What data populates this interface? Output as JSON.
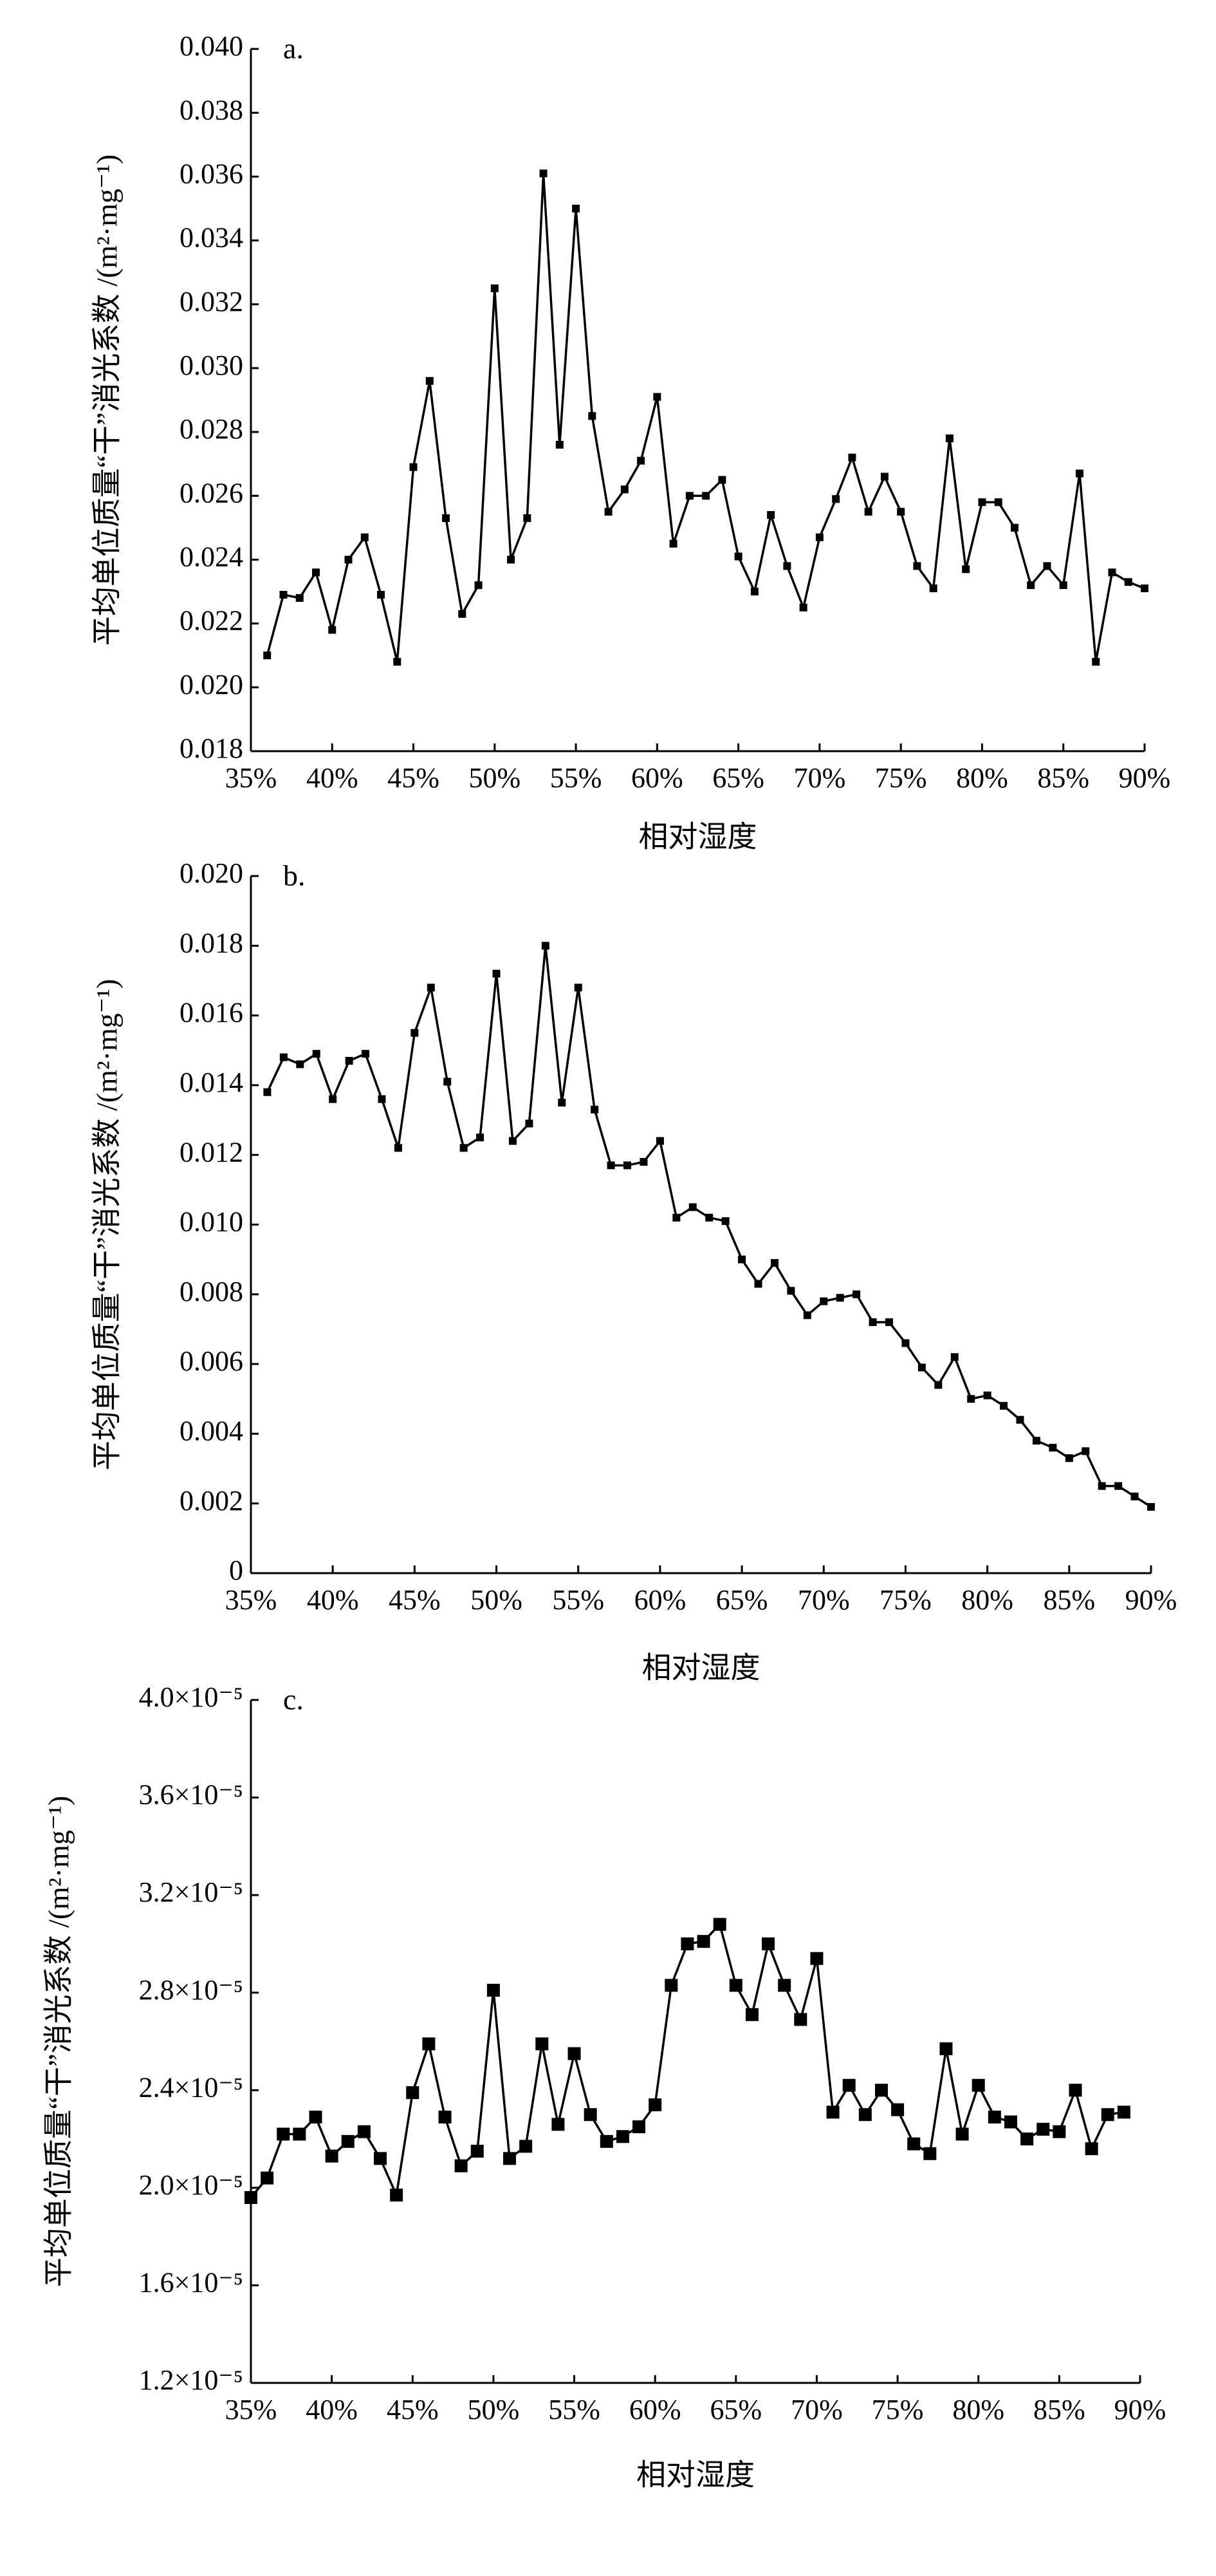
{
  "chart_data": [
    {
      "type": "line",
      "title": "a.",
      "x_label": "相对湿度",
      "y_label": "平均单位质量“干”消光系数 /(m²·mg⁻¹)",
      "color": "#000000",
      "x": [
        36,
        37,
        38,
        39,
        40,
        41,
        42,
        43,
        44,
        45,
        46,
        47,
        48,
        49,
        50,
        51,
        52,
        53,
        54,
        55,
        56,
        57,
        58,
        59,
        60,
        61,
        62,
        63,
        64,
        65,
        66,
        67,
        68,
        69,
        70,
        71,
        72,
        73,
        74,
        75,
        76,
        77,
        78,
        79,
        80,
        81,
        82,
        83,
        84,
        85,
        86,
        87,
        88,
        89,
        90
      ],
      "values": [
        0.021,
        0.0229,
        0.0228,
        0.0236,
        0.0218,
        0.024,
        0.0247,
        0.0229,
        0.0208,
        0.0269,
        0.0296,
        0.0253,
        0.0223,
        0.0232,
        0.0325,
        0.024,
        0.0253,
        0.0361,
        0.0276,
        0.035,
        0.0285,
        0.0255,
        0.0262,
        0.0271,
        0.0291,
        0.0245,
        0.026,
        0.026,
        0.0265,
        0.0241,
        0.023,
        0.0254,
        0.0238,
        0.0225,
        0.0247,
        0.0259,
        0.0272,
        0.0255,
        0.0266,
        0.0255,
        0.0238,
        0.0231,
        0.0278,
        0.0237,
        0.0258,
        0.0258,
        0.025,
        0.0232,
        0.0238,
        0.0232,
        0.0267,
        0.0208,
        0.0236,
        0.0233,
        0.0231
      ],
      "xlim": [
        35,
        90
      ],
      "xticks": [
        {
          "value": 35,
          "label": "35%"
        },
        {
          "value": 40,
          "label": "40%"
        },
        {
          "value": 45,
          "label": "45%"
        },
        {
          "value": 50,
          "label": "50%"
        },
        {
          "value": 55,
          "label": "55%"
        },
        {
          "value": 60,
          "label": "60%"
        },
        {
          "value": 65,
          "label": "65%"
        },
        {
          "value": 70,
          "label": "70%"
        },
        {
          "value": 75,
          "label": "75%"
        },
        {
          "value": 80,
          "label": "80%"
        },
        {
          "value": 85,
          "label": "85%"
        },
        {
          "value": 90,
          "label": "90%"
        }
      ],
      "ylim": [
        0.018,
        0.04
      ],
      "yticks": [
        0.018,
        {
          "value": 0.02,
          "label": "0.020"
        },
        0.022,
        0.024,
        0.026,
        0.028,
        {
          "value": 0.03,
          "label": "0.030"
        },
        0.032,
        0.034,
        0.036,
        0.038,
        {
          "value": 0.04,
          "label": "0.040"
        }
      ]
    },
    {
      "type": "line",
      "title": "b.",
      "x_label": "相对湿度",
      "y_label": "平均单位质量“干”消光系数 /(m²·mg⁻¹)",
      "color": "#000000",
      "x": [
        36,
        37,
        38,
        39,
        40,
        41,
        42,
        43,
        44,
        45,
        46,
        47,
        48,
        49,
        50,
        51,
        52,
        53,
        54,
        55,
        56,
        57,
        58,
        59,
        60,
        61,
        62,
        63,
        64,
        65,
        66,
        67,
        68,
        69,
        70,
        71,
        72,
        73,
        74,
        75,
        76,
        77,
        78,
        79,
        80,
        81,
        82,
        83,
        84,
        85,
        86,
        87,
        88,
        89,
        90
      ],
      "values": [
        0.0138,
        0.0148,
        0.0146,
        0.0149,
        0.0136,
        0.0147,
        0.0149,
        0.0136,
        0.0122,
        0.0155,
        0.0168,
        0.0141,
        0.0122,
        0.0125,
        0.0172,
        0.0124,
        0.0129,
        0.018,
        0.0135,
        0.0168,
        0.0133,
        0.0117,
        0.0117,
        0.0118,
        0.0124,
        0.0102,
        0.0105,
        0.0102,
        0.0101,
        0.009,
        0.0083,
        0.0089,
        0.0081,
        0.0074,
        0.0078,
        0.0079,
        0.008,
        0.0072,
        0.0072,
        0.0066,
        0.0059,
        0.0054,
        0.0062,
        0.005,
        0.0051,
        0.0048,
        0.0044,
        0.0038,
        0.0036,
        0.0033,
        0.0035,
        0.0025,
        0.0025,
        0.0022,
        0.0019
      ],
      "xlim": [
        35,
        90
      ],
      "xticks": [
        {
          "value": 35,
          "label": "35%"
        },
        {
          "value": 40,
          "label": "40%"
        },
        {
          "value": 45,
          "label": "45%"
        },
        {
          "value": 50,
          "label": "50%"
        },
        {
          "value": 55,
          "label": "55%"
        },
        {
          "value": 60,
          "label": "60%"
        },
        {
          "value": 65,
          "label": "65%"
        },
        {
          "value": 70,
          "label": "70%"
        },
        {
          "value": 75,
          "label": "75%"
        },
        {
          "value": 80,
          "label": "80%"
        },
        {
          "value": 85,
          "label": "85%"
        },
        {
          "value": 90,
          "label": "90%"
        }
      ],
      "ylim": [
        0,
        0.02
      ],
      "yticks": [
        0,
        0.002,
        0.004,
        0.006,
        0.008,
        {
          "value": 0.01,
          "label": "0.010"
        },
        0.012,
        0.014,
        0.016,
        0.018,
        {
          "value": 0.02,
          "label": "0.020"
        }
      ]
    },
    {
      "type": "line",
      "title": "c.",
      "x_label": "相对湿度",
      "y_label": "平均单位质量“干”消光系数 /(m²·mg⁻¹)",
      "color": "#000000",
      "x": [
        35,
        36,
        37,
        38,
        39,
        40,
        41,
        42,
        43,
        44,
        45,
        46,
        47,
        48,
        49,
        50,
        51,
        52,
        53,
        54,
        55,
        56,
        57,
        58,
        59,
        60,
        61,
        62,
        63,
        64,
        65,
        66,
        67,
        68,
        69,
        70,
        71,
        72,
        73,
        74,
        75,
        76,
        77,
        78,
        79,
        80,
        81,
        82,
        83,
        84,
        85,
        86,
        87,
        88,
        89
      ],
      "values": [
        1.96e-05,
        2.04e-05,
        2.22e-05,
        2.22e-05,
        2.29e-05,
        2.13e-05,
        2.19e-05,
        2.23e-05,
        2.12e-05,
        1.97e-05,
        2.39e-05,
        2.59e-05,
        2.29e-05,
        2.09e-05,
        2.15e-05,
        2.81e-05,
        2.12e-05,
        2.17e-05,
        2.59e-05,
        2.26e-05,
        2.55e-05,
        2.3e-05,
        2.19e-05,
        2.21e-05,
        2.25e-05,
        2.34e-05,
        2.83e-05,
        3e-05,
        3.01e-05,
        3.08e-05,
        2.83e-05,
        2.71e-05,
        3e-05,
        2.83e-05,
        2.69e-05,
        2.94e-05,
        2.31e-05,
        2.42e-05,
        2.3e-05,
        2.4e-05,
        2.32e-05,
        2.18e-05,
        2.14e-05,
        2.57e-05,
        2.22e-05,
        2.42e-05,
        2.29e-05,
        2.27e-05,
        2.2e-05,
        2.24e-05,
        2.23e-05,
        2.4e-05,
        2.16e-05,
        2.3e-05,
        2.31e-05
      ],
      "xlim": [
        35,
        90
      ],
      "xticks": [
        {
          "value": 35,
          "label": "35%"
        },
        {
          "value": 40,
          "label": "40%"
        },
        {
          "value": 45,
          "label": "45%"
        },
        {
          "value": 50,
          "label": "50%"
        },
        {
          "value": 55,
          "label": "55%"
        },
        {
          "value": 60,
          "label": "60%"
        },
        {
          "value": 65,
          "label": "65%"
        },
        {
          "value": 70,
          "label": "70%"
        },
        {
          "value": 75,
          "label": "75%"
        },
        {
          "value": 80,
          "label": "80%"
        },
        {
          "value": 85,
          "label": "85%"
        },
        {
          "value": 90,
          "label": "90%"
        }
      ],
      "ylim": [
        1.2e-05,
        4e-05
      ],
      "yticks": [
        {
          "value": 1.2e-05,
          "label": "1.2×10⁻⁵"
        },
        {
          "value": 1.6e-05,
          "label": "1.6×10⁻⁵"
        },
        {
          "value": 2e-05,
          "label": "2.0×10⁻⁵"
        },
        {
          "value": 2.4e-05,
          "label": "2.4×10⁻⁵"
        },
        {
          "value": 2.8e-05,
          "label": "2.8×10⁻⁵"
        },
        {
          "value": 3.2e-05,
          "label": "3.2×10⁻⁵"
        },
        {
          "value": 3.6e-05,
          "label": "3.6×10⁻⁵"
        },
        {
          "value": 4e-05,
          "label": "4.0×10⁻⁵"
        }
      ]
    }
  ]
}
